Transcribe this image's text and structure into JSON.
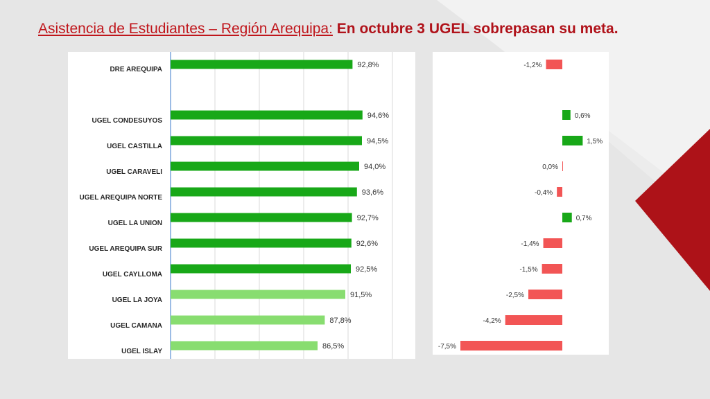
{
  "slide": {
    "title_part1": "Asistencia de Estudiantes – Región Arequipa:",
    "title_part2": "En octubre 3 UGEL sobrepasan su meta."
  },
  "colors": {
    "dark_green": "#18a818",
    "light_green": "#88dd70",
    "red": "#f25555",
    "title_red": "#c0161c",
    "accent_red": "#ad1218"
  },
  "chart_data": [
    {
      "type": "bar",
      "orientation": "horizontal",
      "categories": [
        "DRE AREQUIPA",
        "UGEL CONDESUYOS",
        "UGEL CASTILLA",
        "UGEL CARAVELI",
        "UGEL AREQUIPA NORTE",
        "UGEL LA UNION",
        "UGEL AREQUIPA SUR",
        "UGEL CAYLLOMA",
        "UGEL LA JOYA",
        "UGEL CAMANA",
        "UGEL ISLAY"
      ],
      "values": [
        92.8,
        94.6,
        94.5,
        94.0,
        93.6,
        92.7,
        92.6,
        92.5,
        91.5,
        87.8,
        86.5
      ],
      "labels": [
        "92,8%",
        "94,6%",
        "94,5%",
        "94,0%",
        "93,6%",
        "92,7%",
        "92,6%",
        "92,5%",
        "91,5%",
        "87,8%",
        "86,5%"
      ],
      "bar_colors": [
        "dark",
        "dark",
        "dark",
        "dark",
        "dark",
        "dark",
        "dark",
        "dark",
        "light",
        "light",
        "light"
      ],
      "xlim": [
        60,
        100
      ],
      "grid": true
    },
    {
      "type": "bar",
      "orientation": "horizontal",
      "values": [
        -1.2,
        0.6,
        1.5,
        0.0,
        -0.4,
        0.7,
        -1.4,
        -1.5,
        -2.5,
        -4.2,
        -7.5
      ],
      "labels": [
        "-1,2%",
        "0,6%",
        "1,5%",
        "0,0%",
        "-0,4%",
        "0,7%",
        "-1,4%",
        "-1,5%",
        "-2,5%",
        "-4,2%",
        "-7,5%"
      ],
      "xlim": [
        -8,
        2
      ],
      "grid": false
    }
  ]
}
